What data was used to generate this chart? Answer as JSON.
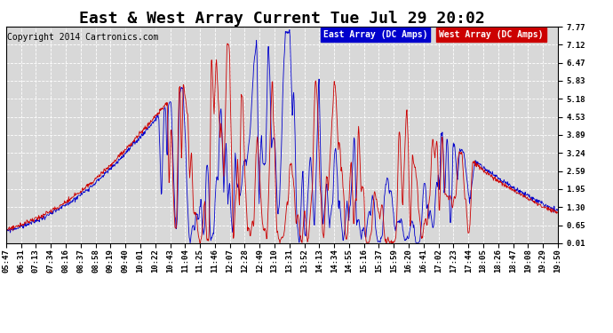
{
  "title": "East & West Array Current Tue Jul 29 20:02",
  "copyright": "Copyright 2014 Cartronics.com",
  "legend_east": "East Array (DC Amps)",
  "legend_west": "West Array (DC Amps)",
  "east_color": "#0000cc",
  "west_color": "#cc0000",
  "background_color": "#ffffff",
  "plot_bg_color": "#d8d8d8",
  "grid_color": "#ffffff",
  "yticks": [
    7.77,
    7.12,
    6.47,
    5.83,
    5.18,
    4.53,
    3.89,
    3.24,
    2.59,
    1.95,
    1.3,
    0.65,
    0.01
  ],
  "ymin": 0.01,
  "ymax": 7.77,
  "x_labels": [
    "05:47",
    "06:31",
    "07:13",
    "07:34",
    "08:16",
    "08:37",
    "08:58",
    "09:19",
    "09:40",
    "10:01",
    "10:22",
    "10:43",
    "11:04",
    "11:25",
    "11:46",
    "12:07",
    "12:28",
    "12:49",
    "13:10",
    "13:31",
    "13:52",
    "14:13",
    "14:34",
    "14:55",
    "15:16",
    "15:37",
    "15:59",
    "16:20",
    "16:41",
    "17:02",
    "17:23",
    "17:44",
    "18:05",
    "18:26",
    "18:47",
    "19:08",
    "19:29",
    "19:50"
  ],
  "title_fontsize": 13,
  "label_fontsize": 6.5,
  "copyright_fontsize": 7
}
